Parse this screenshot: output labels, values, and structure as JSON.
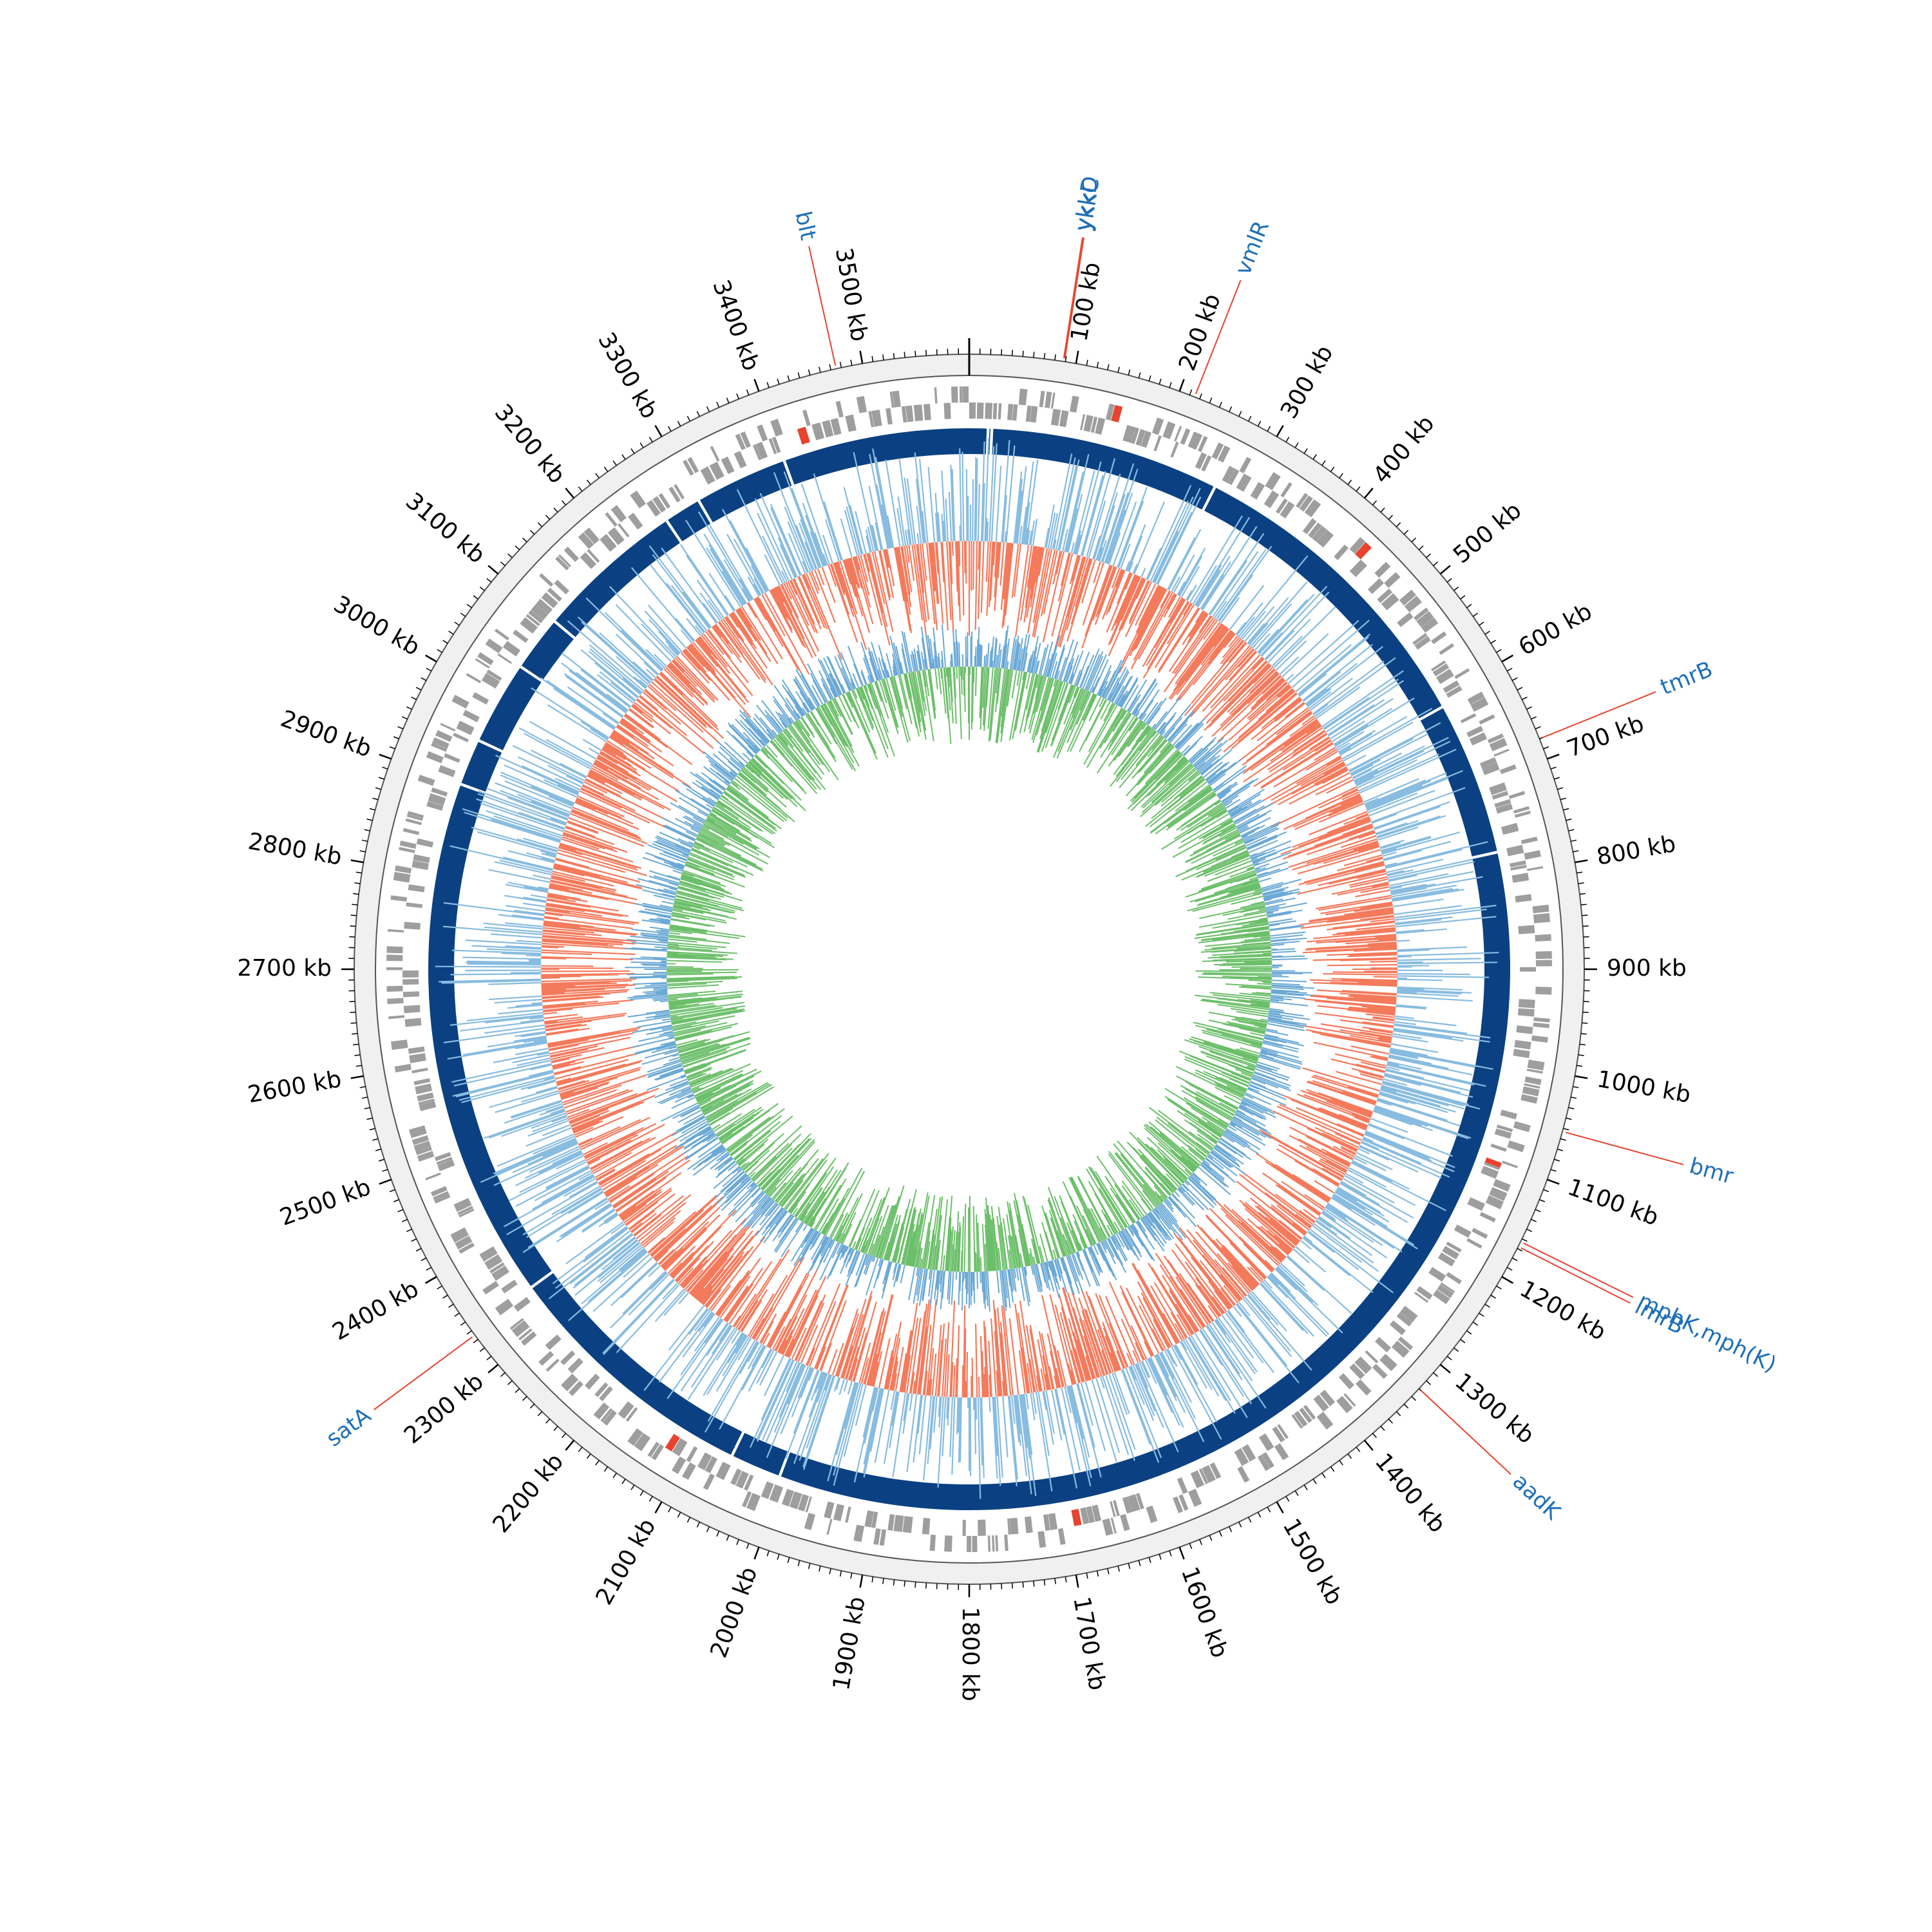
{
  "genome": {
    "length_kb": 3600,
    "tick_step_kb": 100,
    "tick_unit": "kb"
  },
  "tick_labels": [
    "100 kb",
    "200 kb",
    "300 kb",
    "400 kb",
    "500 kb",
    "600 kb",
    "700 kb",
    "800 kb",
    "900 kb",
    "1000 kb",
    "1100 kb",
    "1200 kb",
    "1300 kb",
    "1400 kb",
    "1500 kb",
    "1600 kb",
    "1700 kb",
    "1800 kb",
    "1900 kb",
    "2000 kb",
    "2100 kb",
    "2200 kb",
    "2300 kb",
    "2400 kb",
    "2500 kb",
    "2600 kb",
    "2700 kb",
    "2800 kb",
    "2900 kb",
    "3000 kb",
    "3100 kb",
    "3200 kb",
    "3300 kb",
    "3400 kb",
    "3500 kb"
  ],
  "genes": [
    {
      "name": "blt",
      "position_kb": 3475
    },
    {
      "name": "ykkD",
      "position_kb": 88
    },
    {
      "name": "ykkC",
      "position_kb": 89
    },
    {
      "name": "vmlR",
      "position_kb": 215
    },
    {
      "name": "tmrB",
      "position_kb": 680
    },
    {
      "name": "bmr",
      "position_kb": 1053
    },
    {
      "name": "mphK,mph(K)",
      "position_kb": 1163
    },
    {
      "name": "lmrB",
      "position_kb": 1168
    },
    {
      "name": "aadK",
      "position_kb": 1330
    },
    {
      "name": "satA",
      "position_kb": 2335
    }
  ],
  "contig_gaps_kb": [
    20,
    24,
    270,
    610,
    775,
    2005,
    2060,
    2340,
    2900,
    2950,
    3040,
    3100,
    3260,
    3300,
    3400
  ],
  "colors": {
    "contig": "#0b4182",
    "cds": "#9e9e9e",
    "ring_bg": "#f0f0f0",
    "gc_positive": "#88bce0",
    "gc_negative": "#f47a5c",
    "skew_positive": "#6ba9d6",
    "skew_negative": "#6cbf6a",
    "gene_text": "#1f6fb8",
    "gene_line": "#e8432e"
  }
}
